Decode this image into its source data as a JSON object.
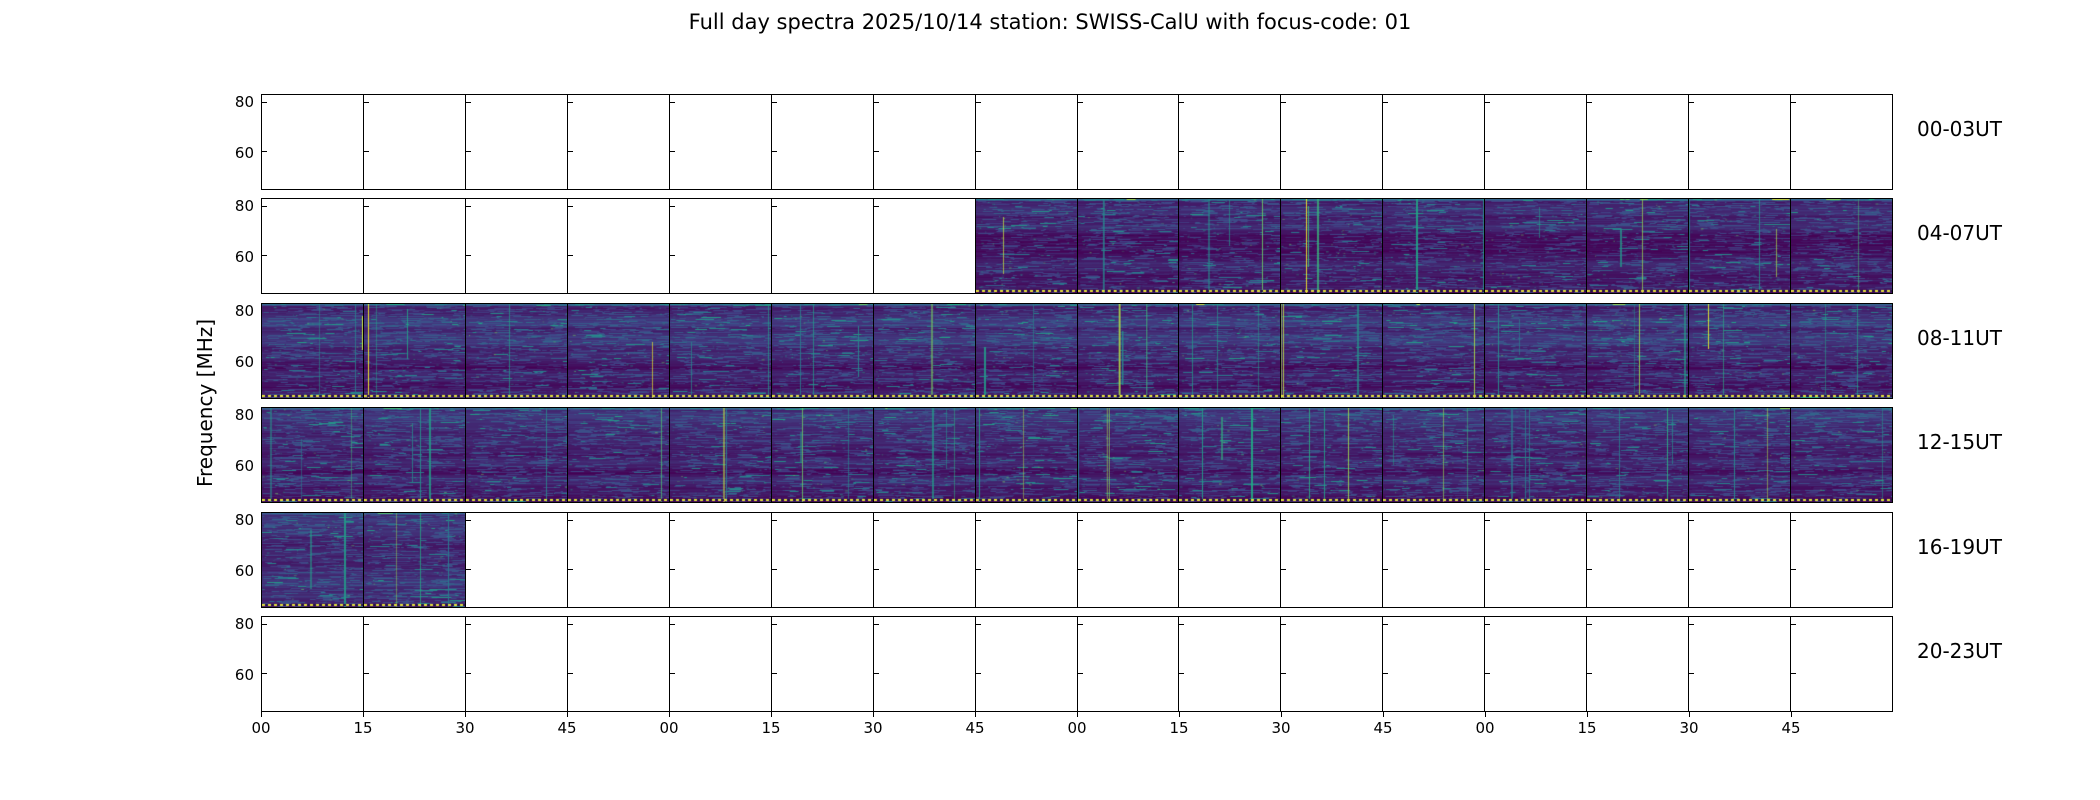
{
  "chart_data": {
    "type": "heatmap",
    "title": "Full day spectra 2025/10/14 station: SWISS-CalU with focus-code: 01",
    "ylabel": "Frequency [MHz]",
    "y_tick_labels": [
      "80",
      "60"
    ],
    "x_tick_labels": [
      "00",
      "15",
      "30",
      "45",
      "00",
      "15",
      "30",
      "45",
      "00",
      "15",
      "30",
      "45",
      "00",
      "15",
      "30",
      "45"
    ],
    "panels_per_row": 16,
    "minutes_per_panel": 15,
    "rows": [
      {
        "label": "00-03UT",
        "filled_panels": [
          0,
          0
        ]
      },
      {
        "label": "04-07UT",
        "filled_panels": [
          7,
          16
        ]
      },
      {
        "label": "08-11UT",
        "filled_panels": [
          0,
          16
        ]
      },
      {
        "label": "12-15UT",
        "filled_panels": [
          0,
          16
        ]
      },
      {
        "label": "16-19UT",
        "filled_panels": [
          0,
          2
        ]
      },
      {
        "label": "20-23UT",
        "filled_panels": [
          0,
          0
        ]
      }
    ],
    "colors": {
      "colormap": "viridis",
      "background": "#ffffff",
      "axis": "#000000",
      "spectrogram_base": "#3a1c63",
      "dotted_bottom_line": "#e7e43a"
    }
  }
}
